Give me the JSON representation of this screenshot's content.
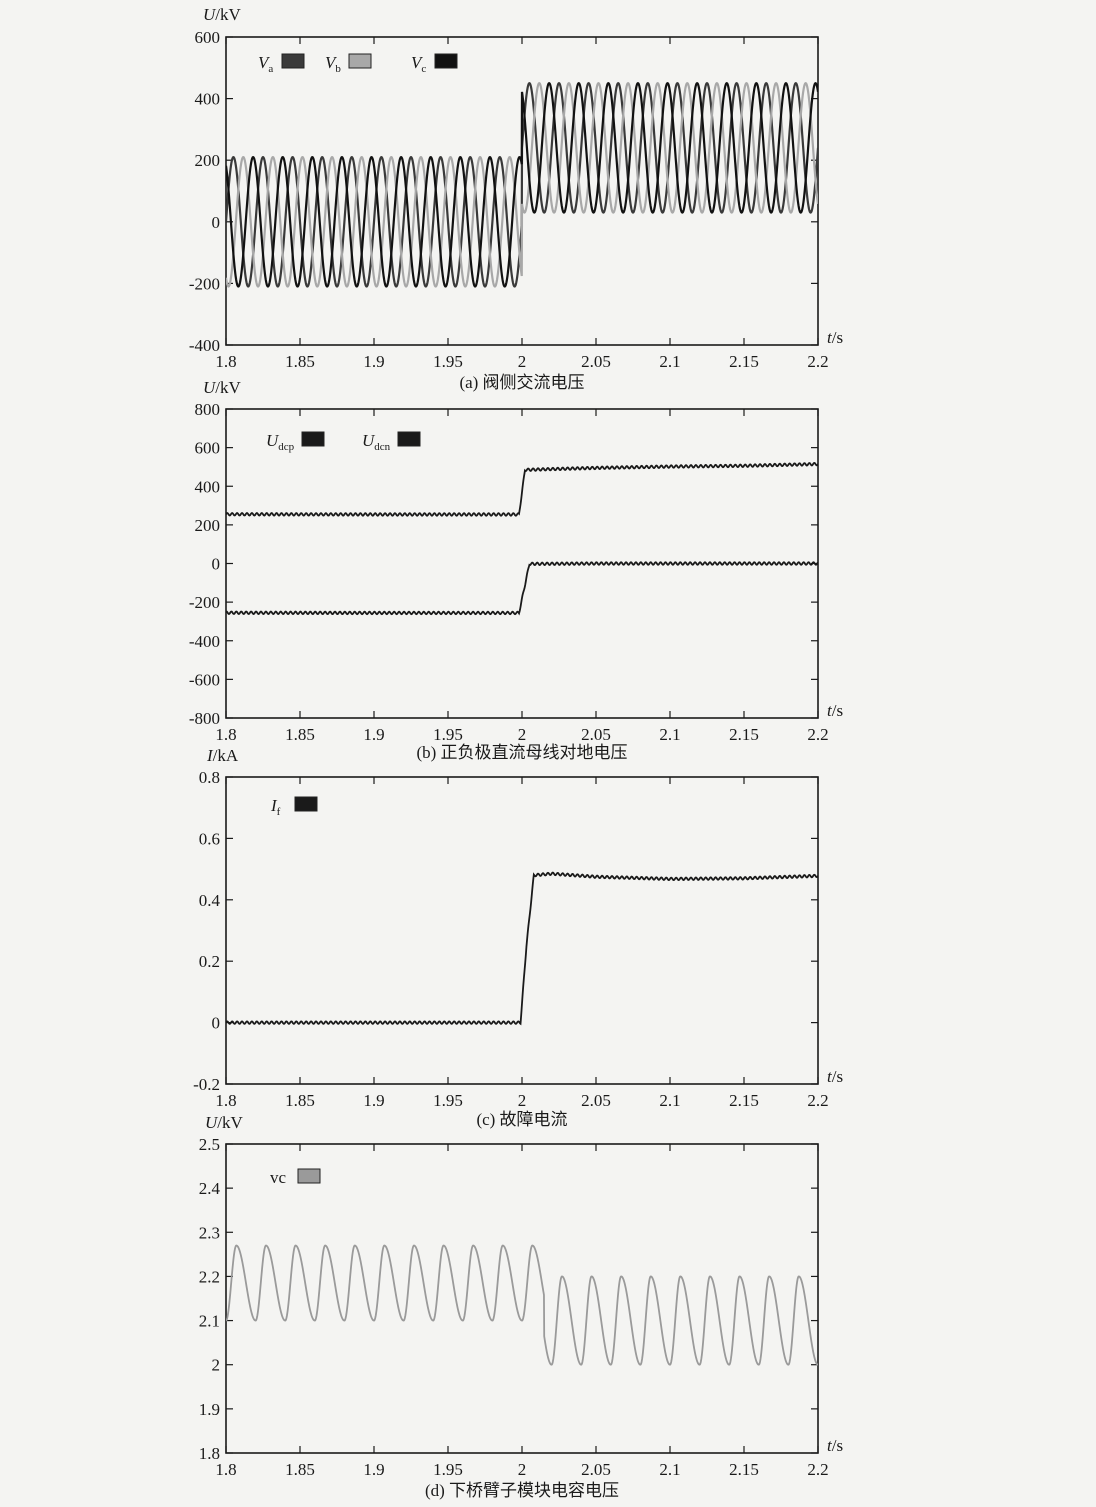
{
  "colors": {
    "background": "#f4f4f2",
    "axis": "#1a1a1a",
    "phase_a": "#3a3a3a",
    "phase_b": "#a8a8a8",
    "phase_c": "#111111",
    "dc": "#1a1a1a",
    "capacitor": "#9a9a9a"
  },
  "chart_data": [
    {
      "id": "a",
      "type": "line",
      "caption": "(a) 阀侧交流电压",
      "ylabel": "U/kV",
      "xlabel": "t/s",
      "xlim": [
        1.8,
        2.2
      ],
      "ylim": [
        -400,
        600
      ],
      "xticks": [
        1.8,
        1.85,
        1.9,
        1.95,
        2,
        2.05,
        2.1,
        2.15,
        2.2
      ],
      "xtick_labels": [
        "1.8",
        "1.85",
        "1.9",
        "1.95",
        "2",
        "2.05",
        "2.1",
        "2.15",
        "2.2"
      ],
      "yticks": [
        -400,
        -200,
        0,
        200,
        400,
        600
      ],
      "ytick_labels": [
        "-400",
        "-200",
        "0",
        "200",
        "400",
        "600"
      ],
      "grid": false,
      "legend_position": "top-left",
      "series": [
        {
          "name": "Va",
          "legend_main": "V",
          "legend_sub": "a",
          "color_key": "phase_a",
          "kind": "ac",
          "freq_hz": 50,
          "phase_deg": 0,
          "amplitude_before": 210,
          "offset_before": 0,
          "amplitude_after": 210,
          "offset_after": 240,
          "step_time": 2.0
        },
        {
          "name": "Vb",
          "legend_main": "V",
          "legend_sub": "b",
          "color_key": "phase_b",
          "kind": "ac",
          "freq_hz": 50,
          "phase_deg": -120,
          "amplitude_before": 210,
          "offset_before": 0,
          "amplitude_after": 210,
          "offset_after": 240,
          "step_time": 2.0
        },
        {
          "name": "Vc",
          "legend_main": "V",
          "legend_sub": "c",
          "color_key": "phase_c",
          "kind": "ac",
          "freq_hz": 50,
          "phase_deg": 120,
          "amplitude_before": 210,
          "offset_before": 0,
          "amplitude_after": 210,
          "offset_after": 240,
          "step_time": 2.0
        }
      ]
    },
    {
      "id": "b",
      "type": "line",
      "caption": "(b) 正负极直流母线对地电压",
      "ylabel": "U/kV",
      "xlabel": "t/s",
      "xlim": [
        1.8,
        2.2
      ],
      "ylim": [
        -800,
        800
      ],
      "xticks": [
        1.8,
        1.85,
        1.9,
        1.95,
        2,
        2.05,
        2.1,
        2.15,
        2.2
      ],
      "xtick_labels": [
        "1.8",
        "1.85",
        "1.9",
        "1.95",
        "2",
        "2.05",
        "2.1",
        "2.15",
        "2.2"
      ],
      "yticks": [
        -800,
        -600,
        -400,
        -200,
        0,
        200,
        400,
        600,
        800
      ],
      "ytick_labels": [
        "-800",
        "-600",
        "-400",
        "-200",
        "0",
        "200",
        "400",
        "600",
        "800"
      ],
      "grid": false,
      "legend_position": "top-left",
      "series": [
        {
          "name": "Udcp",
          "legend_main": "U",
          "legend_sub": "dcp",
          "color_key": "dc",
          "kind": "piecewise",
          "x": [
            1.8,
            1.9,
            1.998,
            2.002,
            2.05,
            2.1,
            2.15,
            2.2
          ],
          "y": [
            255,
            254,
            254,
            485,
            495,
            502,
            506,
            515
          ]
        },
        {
          "name": "Udcn",
          "legend_main": "U",
          "legend_sub": "dcn",
          "color_key": "dc",
          "kind": "piecewise",
          "x": [
            1.8,
            1.9,
            1.998,
            2.005,
            2.05,
            2.1,
            2.15,
            2.2
          ],
          "y": [
            -255,
            -256,
            -256,
            -2,
            0,
            0,
            0,
            0
          ]
        }
      ]
    },
    {
      "id": "c",
      "type": "line",
      "caption": "(c) 故障电流",
      "ylabel": "I/kA",
      "xlabel": "t/s",
      "xlim": [
        1.8,
        2.2
      ],
      "ylim": [
        -0.2,
        0.8
      ],
      "xticks": [
        1.8,
        1.85,
        1.9,
        1.95,
        2,
        2.05,
        2.1,
        2.15,
        2.2
      ],
      "xtick_labels": [
        "1.8",
        "1.85",
        "1.9",
        "1.95",
        "2",
        "2.05",
        "2.1",
        "2.15",
        "2.2"
      ],
      "yticks": [
        -0.2,
        0,
        0.2,
        0.4,
        0.6,
        0.8
      ],
      "ytick_labels": [
        "-0.2",
        "0",
        "0.2",
        "0.4",
        "0.6",
        "0.8"
      ],
      "grid": false,
      "legend_position": "top-left",
      "series": [
        {
          "name": "If",
          "legend_main": "I",
          "legend_sub": "f",
          "color_key": "dc",
          "kind": "piecewise",
          "x": [
            1.8,
            1.999,
            2.003,
            2.008,
            2.02,
            2.05,
            2.1,
            2.15,
            2.2
          ],
          "y": [
            0,
            0,
            0.25,
            0.48,
            0.485,
            0.475,
            0.468,
            0.47,
            0.478
          ]
        }
      ]
    },
    {
      "id": "d",
      "type": "line",
      "caption": "(d) 下桥臂子模块电容电压",
      "ylabel": "U/kV",
      "xlabel": "t/s",
      "xlim": [
        1.8,
        2.2
      ],
      "ylim": [
        1.8,
        2.5
      ],
      "xticks": [
        1.8,
        1.85,
        1.9,
        1.95,
        2,
        2.05,
        2.1,
        2.15,
        2.2
      ],
      "xtick_labels": [
        "1.8",
        "1.85",
        "1.9",
        "1.95",
        "2",
        "2.05",
        "2.1",
        "2.15",
        "2.2"
      ],
      "yticks": [
        1.8,
        1.9,
        2,
        2.1,
        2.2,
        2.3,
        2.4,
        2.5
      ],
      "ytick_labels": [
        "1.8",
        "1.9",
        "2",
        "2.1",
        "2.2",
        "2.3",
        "2.4",
        "2.5"
      ],
      "grid": false,
      "legend_position": "top-left",
      "series": [
        {
          "name": "vc",
          "legend_main": "vc",
          "legend_sub": "",
          "color_key": "capacitor",
          "kind": "ripple",
          "freq_hz": 50,
          "min_before": 2.1,
          "max_before": 2.27,
          "min_after": 2.0,
          "max_after": 2.2,
          "step_time": 2.015
        }
      ]
    }
  ]
}
